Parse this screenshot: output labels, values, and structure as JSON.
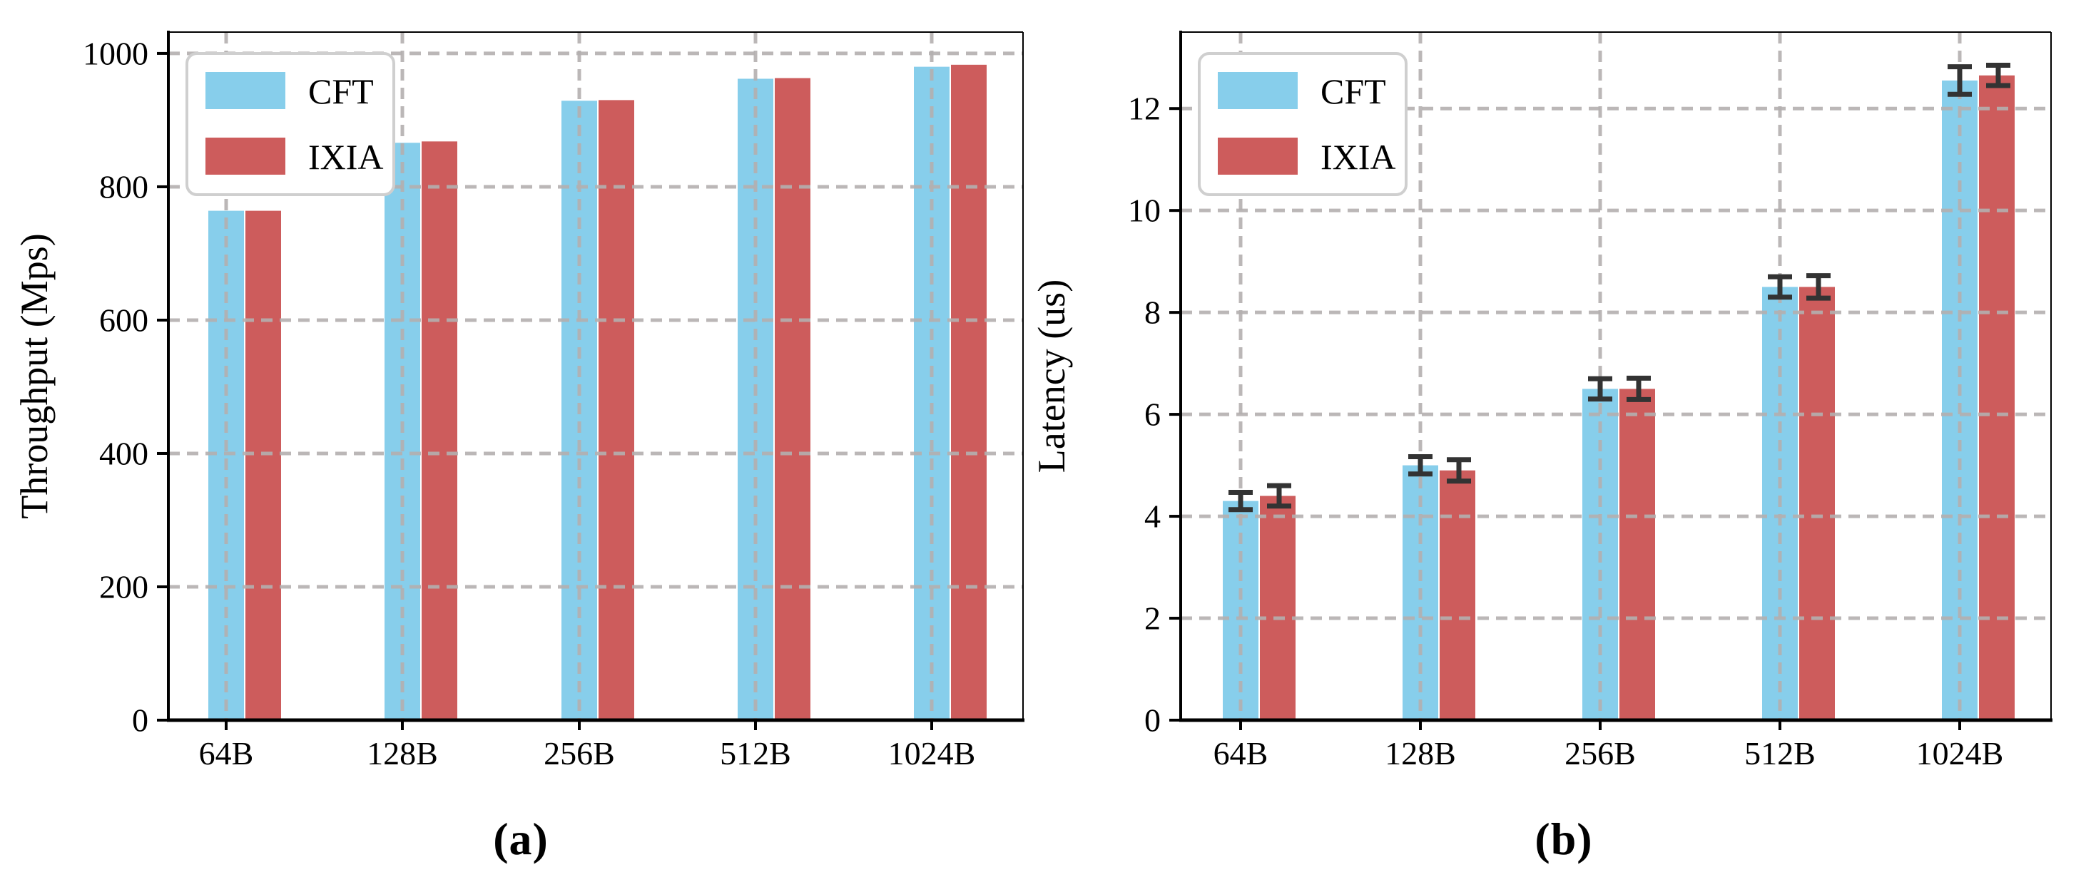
{
  "figure": {
    "background": "#ffffff",
    "caption_a": "(a)",
    "caption_b": "(b)"
  },
  "colors": {
    "cft": "#87CEEB",
    "ixia": "#CD5C5C",
    "grid": "#b4b0b0",
    "error_bar": "#333333",
    "axis": "#000000",
    "tick_label": "#000000",
    "legend_border": "#cfcfcf",
    "legend_background": "#ffffff"
  },
  "chart_data": [
    {
      "id": "throughput",
      "type": "bar",
      "title": "",
      "xlabel": "",
      "ylabel": "Throughput (Mps)",
      "categories": [
        "64B",
        "128B",
        "256B",
        "512B",
        "1024B"
      ],
      "series": [
        {
          "name": "CFT",
          "color": "#87CEEB",
          "values": [
            764,
            866,
            929,
            962,
            980
          ],
          "errors": [
            0,
            0,
            0,
            0,
            0
          ]
        },
        {
          "name": "IXIA",
          "color": "#CD5C5C",
          "values": [
            764,
            868,
            930,
            963,
            983
          ],
          "errors": [
            0,
            0,
            0,
            0,
            0
          ]
        }
      ],
      "ylim": [
        0,
        1032
      ],
      "yticks": [
        0,
        200,
        400,
        600,
        800,
        1000
      ],
      "grid": true,
      "legend": {
        "position": "upper-left",
        "entries": [
          "CFT",
          "IXIA"
        ]
      },
      "caption": "(a)"
    },
    {
      "id": "latency",
      "type": "bar",
      "title": "",
      "xlabel": "",
      "ylabel": "Latency (us)",
      "categories": [
        "64B",
        "128B",
        "256B",
        "512B",
        "1024B"
      ],
      "series": [
        {
          "name": "CFT",
          "color": "#87CEEB",
          "values": [
            4.3,
            5.0,
            6.5,
            8.5,
            12.55
          ],
          "errors": [
            0.17,
            0.17,
            0.2,
            0.2,
            0.27
          ]
        },
        {
          "name": "IXIA",
          "color": "#CD5C5C",
          "values": [
            4.4,
            4.9,
            6.5,
            8.5,
            12.65
          ],
          "errors": [
            0.2,
            0.21,
            0.21,
            0.22,
            0.2
          ]
        }
      ],
      "ylim": [
        0,
        13.5
      ],
      "yticks": [
        0,
        2,
        4,
        6,
        8,
        10,
        12
      ],
      "grid": true,
      "legend": {
        "position": "upper-left",
        "entries": [
          "CFT",
          "IXIA"
        ]
      },
      "caption": "(b)"
    }
  ]
}
